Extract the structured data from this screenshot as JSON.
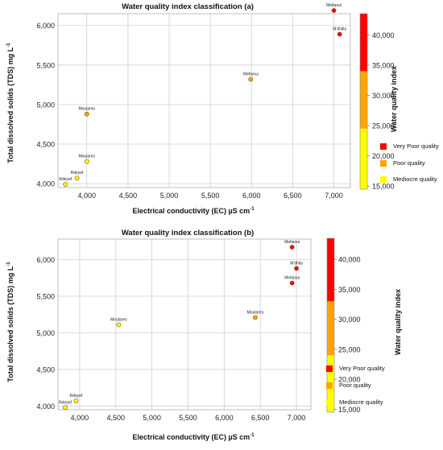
{
  "chart_data": [
    {
      "type": "scatter",
      "title": "Water quality index classification (a)",
      "xlabel": "Electrical conductivity (EC) µS cm",
      "xlabel_sup": "-1",
      "ylabel": "Total dissolved solids (TDS) mg L",
      "ylabel_sup": "-1",
      "xlim": [
        3650,
        7200
      ],
      "ylim": [
        3950,
        6150
      ],
      "xticks": [
        "4,000",
        "4,500",
        "5,000",
        "5,500",
        "6,000",
        "6,500",
        "7,000"
      ],
      "xtick_values": [
        4000,
        4500,
        5000,
        5500,
        6000,
        6500,
        7000
      ],
      "yticks": [
        "4,000",
        "4,500",
        "5,000",
        "5,500",
        "6,000"
      ],
      "ytick_values": [
        4000,
        4500,
        5000,
        5500,
        6000
      ],
      "grid": true,
      "points": [
        {
          "label": "Metlaoui",
          "x": 7000,
          "y": 6190,
          "wqi": 42000
        },
        {
          "label": "M'dhilla",
          "x": 7070,
          "y": 5890,
          "wqi": 39000
        },
        {
          "label": "Metlaoui",
          "x": 5990,
          "y": 5320,
          "wqi": 31000
        },
        {
          "label": "Moulares",
          "x": 4000,
          "y": 4880,
          "wqi": 25500
        },
        {
          "label": "Moulares",
          "x": 4000,
          "y": 4280,
          "wqi": 20000
        },
        {
          "label": "Rdeyef",
          "x": 3880,
          "y": 4070,
          "wqi": 17500
        },
        {
          "label": "Rdeyef",
          "x": 3740,
          "y": 3990,
          "wqi": 16000
        }
      ],
      "colorbar": {
        "label": "Water quality index",
        "min": 14500,
        "max": 43500,
        "ticks": [
          "15,000",
          "20,000",
          "25,000",
          "30,000",
          "35,000",
          "40,000"
        ],
        "tick_values": [
          15000,
          20000,
          25000,
          30000,
          35000,
          40000
        ],
        "bands": [
          {
            "from": 14500,
            "to": 24500,
            "color": "#ffff00"
          },
          {
            "from": 24500,
            "to": 34000,
            "color": "#ffa500"
          },
          {
            "from": 34000,
            "to": 43500,
            "color": "#ff0000"
          }
        ]
      },
      "legend": [
        {
          "label": "Very Poor quality",
          "color": "#ff0000"
        },
        {
          "label": "Poor quality",
          "color": "#ffa500"
        },
        {
          "label": "Mediocre quality",
          "color": "#ffff00"
        }
      ]
    },
    {
      "type": "scatter",
      "title": "Water quality index classification (b)",
      "xlabel": "Electrical conductivity (EC) µS cm",
      "xlabel_sup": "-1",
      "ylabel": "Total dissolved solids (TDS) mg L",
      "ylabel_sup": "-1",
      "xlim": [
        3700,
        7200
      ],
      "ylim": [
        3950,
        6280
      ],
      "xticks": [
        "4,000",
        "4,500",
        "5,000",
        "5,500",
        "6,000",
        "6,500",
        "7,000"
      ],
      "xtick_values": [
        4000,
        4500,
        5000,
        5500,
        6000,
        6500,
        7000
      ],
      "yticks": [
        "4,000",
        "4,500",
        "5,000",
        "5,500",
        "6,000"
      ],
      "ytick_values": [
        4000,
        4500,
        5000,
        5500,
        6000
      ],
      "grid": true,
      "points": [
        {
          "label": "Metlaoui",
          "x": 6940,
          "y": 6170,
          "wqi": 41000
        },
        {
          "label": "M'dhila",
          "x": 7000,
          "y": 5880,
          "wqi": 39000
        },
        {
          "label": "Metlaoui",
          "x": 6940,
          "y": 5680,
          "wqi": 37000
        },
        {
          "label": "Moulares",
          "x": 6430,
          "y": 5210,
          "wqi": 28000
        },
        {
          "label": "Moulares",
          "x": 4540,
          "y": 5110,
          "wqi": 20500
        },
        {
          "label": "Rdeyef",
          "x": 3950,
          "y": 4070,
          "wqi": 17500
        },
        {
          "label": "Rdeyef",
          "x": 3800,
          "y": 3980,
          "wqi": 16000
        }
      ],
      "colorbar": {
        "label": "Water quality index",
        "min": 14500,
        "max": 43500,
        "ticks": [
          "15,000",
          "20,000",
          "25,000",
          "30,000",
          "35,000",
          "40,000"
        ],
        "tick_values": [
          15000,
          20000,
          25000,
          30000,
          35000,
          40000
        ],
        "bands": [
          {
            "from": 14500,
            "to": 24000,
            "color": "#ffff00"
          },
          {
            "from": 24000,
            "to": 33000,
            "color": "#ffa500"
          },
          {
            "from": 33000,
            "to": 43500,
            "color": "#ff0000"
          }
        ]
      },
      "legend": [
        {
          "label": "Very Poor quality",
          "color": "#ff0000"
        },
        {
          "label": "Poor quality",
          "color": "#ffa500"
        },
        {
          "label": "Mediocre quality",
          "color": "#ffff00"
        }
      ]
    }
  ]
}
